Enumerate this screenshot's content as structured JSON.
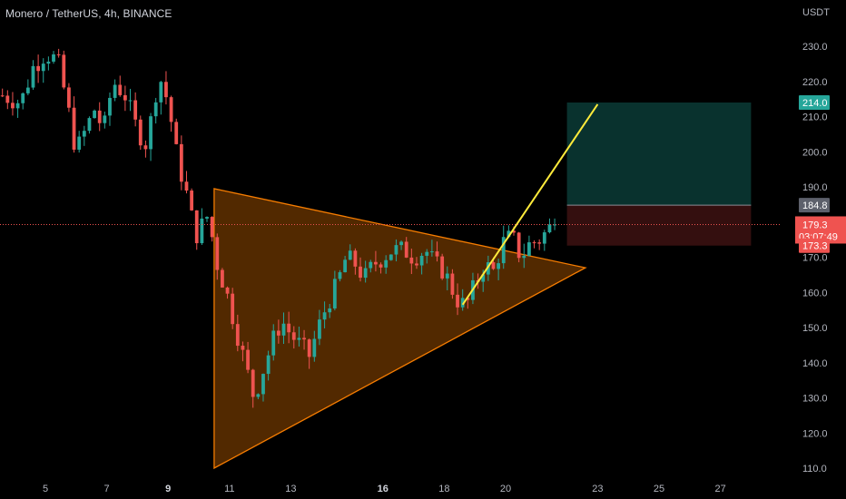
{
  "header": {
    "title": "Monero / TetherUS, 4h, BINANCE"
  },
  "colors": {
    "background": "#000000",
    "up": "#26a69a",
    "down": "#ef5350",
    "triangle_stroke": "#f57c00",
    "triangle_fill": "#f57c0055",
    "breakout_line": "#ffeb3b",
    "target_zone": "#0b3b36",
    "stop_zone": "#3a1111"
  },
  "chart_data": {
    "type": "candlestick",
    "title": "Monero / TetherUS, 4h, BINANCE",
    "ylabel": "USDT",
    "ylim": [
      108,
      240
    ],
    "yticks": [
      "110.0",
      "120.0",
      "130.0",
      "140.0",
      "150.0",
      "160.0",
      "170.0",
      "180.0",
      "190.0",
      "200.0",
      "210.0",
      "220.0",
      "230.0"
    ],
    "xlim": [
      3.6,
      28.5
    ],
    "xticks": [
      {
        "label": "5",
        "x": 5,
        "bold": false
      },
      {
        "label": "7",
        "x": 7,
        "bold": false
      },
      {
        "label": "9",
        "x": 9,
        "bold": true
      },
      {
        "label": "11",
        "x": 11,
        "bold": false
      },
      {
        "label": "13",
        "x": 13,
        "bold": false
      },
      {
        "label": "16",
        "x": 16,
        "bold": true
      },
      {
        "label": "18",
        "x": 18,
        "bold": false
      },
      {
        "label": "20",
        "x": 20,
        "bold": false
      },
      {
        "label": "23",
        "x": 23,
        "bold": false
      },
      {
        "label": "25",
        "x": 25,
        "bold": false
      },
      {
        "label": "27",
        "x": 27,
        "bold": false
      }
    ],
    "close_path": [
      [
        3.6,
        216
      ],
      [
        4.2,
        214
      ],
      [
        4.6,
        224
      ],
      [
        5.0,
        228
      ],
      [
        5.4,
        226
      ],
      [
        5.7,
        214
      ],
      [
        6.0,
        200
      ],
      [
        6.3,
        206
      ],
      [
        6.6,
        212
      ],
      [
        6.9,
        206
      ],
      [
        7.2,
        220
      ],
      [
        7.6,
        216
      ],
      [
        8.0,
        206
      ],
      [
        8.3,
        202
      ],
      [
        8.7,
        222
      ],
      [
        9.0,
        214
      ],
      [
        9.3,
        198
      ],
      [
        9.6,
        188
      ],
      [
        9.9,
        176
      ],
      [
        10.3,
        182
      ],
      [
        10.6,
        168
      ],
      [
        10.9,
        160
      ],
      [
        11.2,
        150
      ],
      [
        11.5,
        140
      ],
      [
        11.8,
        130
      ],
      [
        12.1,
        138
      ],
      [
        12.4,
        146
      ],
      [
        12.7,
        152
      ],
      [
        13.0,
        148
      ],
      [
        13.3,
        145
      ],
      [
        13.6,
        142
      ],
      [
        13.9,
        150
      ],
      [
        14.2,
        157
      ],
      [
        14.5,
        162
      ],
      [
        14.8,
        170
      ],
      [
        15.1,
        168
      ],
      [
        15.4,
        164
      ],
      [
        15.7,
        168
      ],
      [
        16.0,
        170
      ],
      [
        16.3,
        172
      ],
      [
        16.7,
        172
      ],
      [
        17.0,
        170
      ],
      [
        17.4,
        172
      ],
      [
        17.7,
        168
      ],
      [
        18.0,
        166
      ],
      [
        18.4,
        158
      ],
      [
        18.7,
        156
      ],
      [
        19.0,
        162
      ],
      [
        19.3,
        168
      ],
      [
        19.6,
        166
      ],
      [
        19.9,
        174
      ],
      [
        20.2,
        176
      ],
      [
        20.5,
        170
      ],
      [
        20.8,
        174
      ],
      [
        21.1,
        175
      ],
      [
        21.4,
        178
      ],
      [
        21.6,
        179.3
      ]
    ],
    "triangle": {
      "points": [
        [
          10.5,
          189.5
        ],
        [
          10.5,
          110
        ],
        [
          22.6,
          167
        ]
      ]
    },
    "breakout_line": {
      "from": [
        18.6,
        156.5
      ],
      "to": [
        23.0,
        213.5
      ]
    },
    "position": {
      "x_from": 22.0,
      "x_to": 28.0,
      "target": 214.0,
      "entry": 184.8,
      "stop": 173.3
    },
    "last_price": {
      "value": 179.3,
      "label": "179.3",
      "countdown": "03:07:49"
    },
    "price_tags": [
      {
        "label": "214.0",
        "value": 214.0,
        "color": "#26a69a"
      },
      {
        "label": "184.8",
        "value": 184.8,
        "color": "#5d606b"
      },
      {
        "label": "173.3",
        "value": 173.3,
        "color": "#ef5350"
      }
    ]
  }
}
